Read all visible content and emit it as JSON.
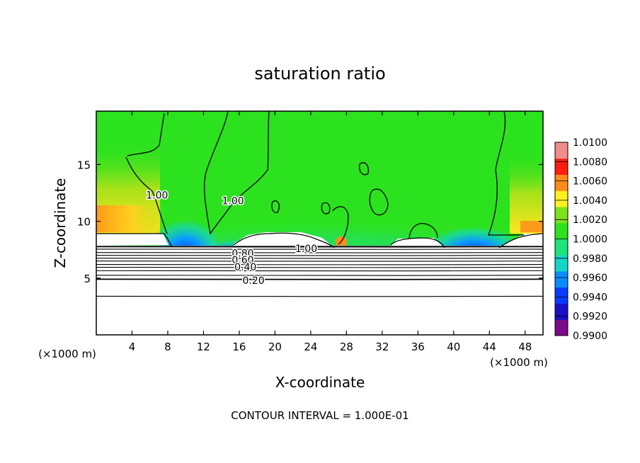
{
  "chart_data": {
    "type": "heatmap",
    "title": "saturation ratio",
    "xlabel": "X-coordinate",
    "ylabel": "Z-coordinate",
    "x_unit_left": "(×1000 m)",
    "x_unit_right": "(×1000 m)",
    "xlim": [
      0,
      50
    ],
    "ylim": [
      0,
      19.7
    ],
    "x_ticks": [
      4,
      8,
      12,
      16,
      20,
      24,
      28,
      32,
      36,
      40,
      44,
      48
    ],
    "x_tick_labels": [
      "4",
      "8",
      "12",
      "16",
      "20",
      "24",
      "28",
      "32",
      "36",
      "40",
      "44",
      "48"
    ],
    "y_ticks": [
      5,
      10,
      15
    ],
    "y_tick_labels": [
      "5",
      "10",
      "15"
    ],
    "colorbar": {
      "min": 0.99,
      "max": 1.01,
      "labels": [
        "1.0100",
        "1.0080",
        "1.0060",
        "1.0040",
        "1.0020",
        "1.0000",
        "0.9980",
        "0.9960",
        "0.9940",
        "0.9920",
        "0.9900"
      ],
      "colors": [
        "#7a0a8a",
        "#1a10c8",
        "#0a3cff",
        "#0a8cff",
        "#14d6c8",
        "#1ee27a",
        "#2ce21e",
        "#7ee21a",
        "#fff01e",
        "#ff8c1a",
        "#ff1e10",
        "#f08c8c"
      ]
    },
    "contour_labels": [
      {
        "text": "1.00",
        "x": 6.8,
        "z": 12.3
      },
      {
        "text": "1.00",
        "x": 15.3,
        "z": 11.8
      },
      {
        "text": "1.00",
        "x": 23.5,
        "z": 7.6
      },
      {
        "text": "0.80",
        "x": 16.4,
        "z": 7.2
      },
      {
        "text": "0.60",
        "x": 16.4,
        "z": 6.6
      },
      {
        "text": "0.40",
        "x": 16.7,
        "z": 6.0
      },
      {
        "text": "0.20",
        "x": 17.6,
        "z": 4.8
      }
    ],
    "contour_levels_z": [
      7.75,
      7.55,
      7.25,
      7.0,
      6.75,
      6.5,
      6.2,
      5.95,
      5.65,
      5.25,
      4.9,
      3.4
    ],
    "annotation": "CONTOUR INTERVAL = 1.000E-01"
  }
}
